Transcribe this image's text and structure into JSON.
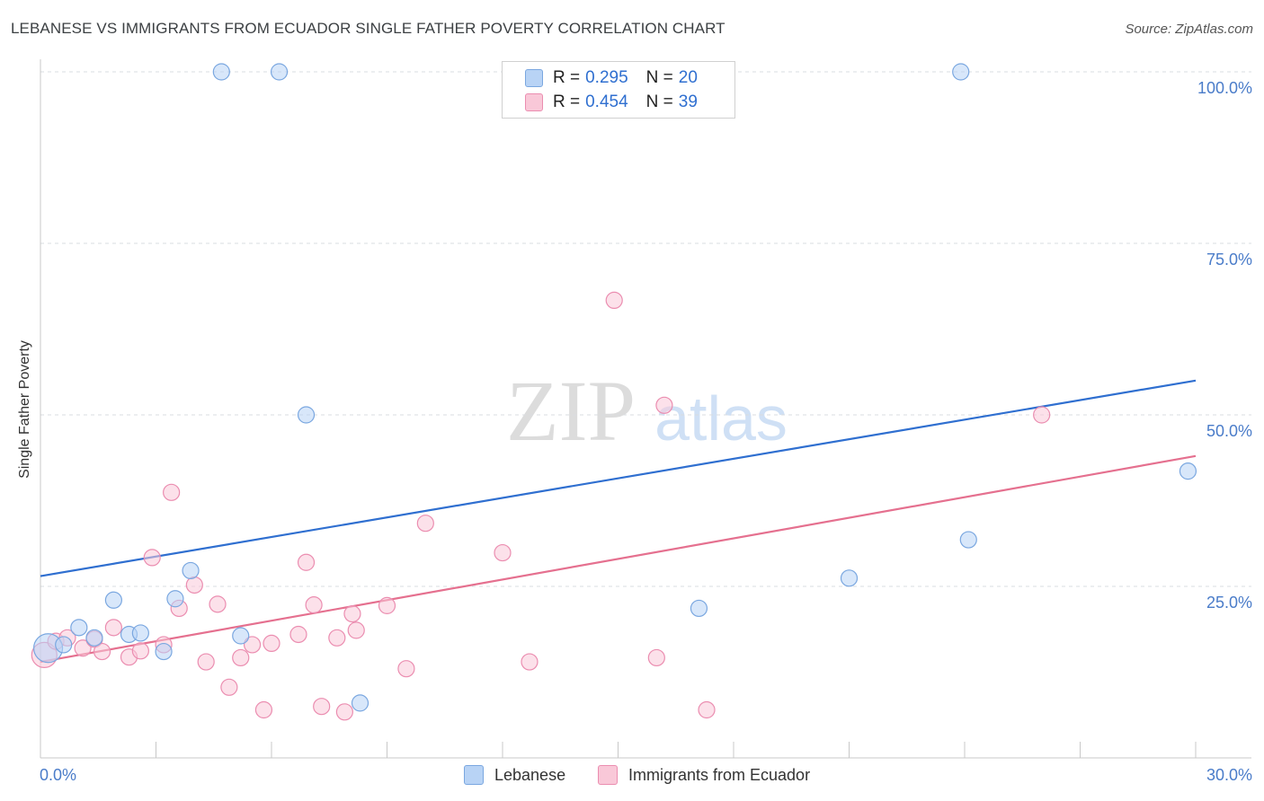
{
  "header": {
    "title": "LEBANESE VS IMMIGRANTS FROM ECUADOR SINGLE FATHER POVERTY CORRELATION CHART",
    "source": "Source: ZipAtlas.com"
  },
  "watermark": {
    "zip": "ZIP",
    "atlas": "atlas"
  },
  "legend_top": {
    "rows": [
      {
        "r_label": "R = ",
        "r_value": "0.295",
        "n_label": "N = ",
        "n_value": "20",
        "color": "#b8d3f5",
        "border": "#7aa7e0"
      },
      {
        "r_label": "R = ",
        "r_value": "0.454",
        "n_label": "N = ",
        "n_value": "39",
        "color": "#f9c8d8",
        "border": "#eb8db0"
      }
    ]
  },
  "legend_bottom": {
    "items": [
      {
        "label": "Lebanese",
        "color": "#b8d3f5",
        "border": "#7aa7e0"
      },
      {
        "label": "Immigrants from Ecuador",
        "color": "#f9c8d8",
        "border": "#eb8db0"
      }
    ]
  },
  "chart_data": {
    "type": "scatter",
    "title": "LEBANESE VS IMMIGRANTS FROM ECUADOR SINGLE FATHER POVERTY CORRELATION CHART",
    "xlabel": "",
    "ylabel": "Single Father Poverty",
    "xlim": [
      0,
      30
    ],
    "ylim": [
      0,
      100
    ],
    "x_tick_labels": [
      "0.0%",
      "30.0%"
    ],
    "y_ticks": [
      25,
      50,
      75,
      100
    ],
    "y_tick_labels": [
      "25.0%",
      "50.0%",
      "75.0%",
      "100.0%"
    ],
    "grid": true,
    "series": [
      {
        "name": "Lebanese",
        "color": "#7aa7e0",
        "fill": "#b8d3f5",
        "line_color": "#2f6fd0",
        "trend": {
          "x": [
            0,
            30
          ],
          "y": [
            26.5,
            55.0
          ]
        },
        "points": [
          {
            "x": 0.2,
            "y": 16.0,
            "size": 16
          },
          {
            "x": 0.6,
            "y": 16.5,
            "size": 9
          },
          {
            "x": 1.0,
            "y": 19.0,
            "size": 9
          },
          {
            "x": 1.4,
            "y": 17.5,
            "size": 9
          },
          {
            "x": 1.9,
            "y": 23.0,
            "size": 9
          },
          {
            "x": 2.3,
            "y": 18.0,
            "size": 9
          },
          {
            "x": 2.6,
            "y": 18.2,
            "size": 9
          },
          {
            "x": 3.2,
            "y": 15.5,
            "size": 9
          },
          {
            "x": 3.5,
            "y": 23.2,
            "size": 9
          },
          {
            "x": 3.9,
            "y": 27.3,
            "size": 9
          },
          {
            "x": 4.7,
            "y": 100.0,
            "size": 9
          },
          {
            "x": 5.2,
            "y": 17.8,
            "size": 9
          },
          {
            "x": 6.2,
            "y": 100.0,
            "size": 9
          },
          {
            "x": 6.9,
            "y": 50.0,
            "size": 9
          },
          {
            "x": 8.3,
            "y": 8.0,
            "size": 9
          },
          {
            "x": 17.1,
            "y": 21.8,
            "size": 9
          },
          {
            "x": 21.0,
            "y": 26.2,
            "size": 9
          },
          {
            "x": 23.9,
            "y": 100.0,
            "size": 9
          },
          {
            "x": 24.1,
            "y": 31.8,
            "size": 9
          },
          {
            "x": 29.8,
            "y": 41.8,
            "size": 9
          }
        ]
      },
      {
        "name": "Immigrants from Ecuador",
        "color": "#eb8db0",
        "fill": "#f9c8d8",
        "line_color": "#e5708f",
        "trend": {
          "x": [
            0,
            30
          ],
          "y": [
            14.0,
            44.0
          ]
        },
        "points": [
          {
            "x": 0.1,
            "y": 15.0,
            "size": 14
          },
          {
            "x": 0.4,
            "y": 17.0,
            "size": 9
          },
          {
            "x": 0.7,
            "y": 17.5,
            "size": 9
          },
          {
            "x": 1.1,
            "y": 16.0,
            "size": 9
          },
          {
            "x": 1.4,
            "y": 17.3,
            "size": 9
          },
          {
            "x": 1.6,
            "y": 15.5,
            "size": 9
          },
          {
            "x": 1.9,
            "y": 19.0,
            "size": 9
          },
          {
            "x": 2.3,
            "y": 14.7,
            "size": 9
          },
          {
            "x": 2.6,
            "y": 15.6,
            "size": 9
          },
          {
            "x": 2.9,
            "y": 29.2,
            "size": 9
          },
          {
            "x": 3.2,
            "y": 16.5,
            "size": 9
          },
          {
            "x": 3.4,
            "y": 38.7,
            "size": 9
          },
          {
            "x": 3.6,
            "y": 21.8,
            "size": 9
          },
          {
            "x": 4.0,
            "y": 25.2,
            "size": 9
          },
          {
            "x": 4.3,
            "y": 14.0,
            "size": 9
          },
          {
            "x": 4.6,
            "y": 22.4,
            "size": 9
          },
          {
            "x": 4.9,
            "y": 10.3,
            "size": 9
          },
          {
            "x": 5.2,
            "y": 14.6,
            "size": 9
          },
          {
            "x": 5.5,
            "y": 16.5,
            "size": 9
          },
          {
            "x": 5.8,
            "y": 7.0,
            "size": 9
          },
          {
            "x": 6.0,
            "y": 16.7,
            "size": 9
          },
          {
            "x": 6.7,
            "y": 18.0,
            "size": 9
          },
          {
            "x": 6.9,
            "y": 28.5,
            "size": 9
          },
          {
            "x": 7.1,
            "y": 22.3,
            "size": 9
          },
          {
            "x": 7.3,
            "y": 7.5,
            "size": 9
          },
          {
            "x": 7.7,
            "y": 17.5,
            "size": 9
          },
          {
            "x": 7.9,
            "y": 6.7,
            "size": 9
          },
          {
            "x": 8.1,
            "y": 21.0,
            "size": 9
          },
          {
            "x": 8.2,
            "y": 18.6,
            "size": 9
          },
          {
            "x": 9.0,
            "y": 22.2,
            "size": 9
          },
          {
            "x": 9.5,
            "y": 13.0,
            "size": 9
          },
          {
            "x": 10.0,
            "y": 34.2,
            "size": 9
          },
          {
            "x": 12.0,
            "y": 29.9,
            "size": 9
          },
          {
            "x": 12.7,
            "y": 14.0,
            "size": 9
          },
          {
            "x": 14.9,
            "y": 66.7,
            "size": 9
          },
          {
            "x": 16.0,
            "y": 14.6,
            "size": 9
          },
          {
            "x": 16.2,
            "y": 51.4,
            "size": 9
          },
          {
            "x": 17.3,
            "y": 7.0,
            "size": 9
          },
          {
            "x": 26.0,
            "y": 50.0,
            "size": 9
          }
        ]
      }
    ]
  }
}
